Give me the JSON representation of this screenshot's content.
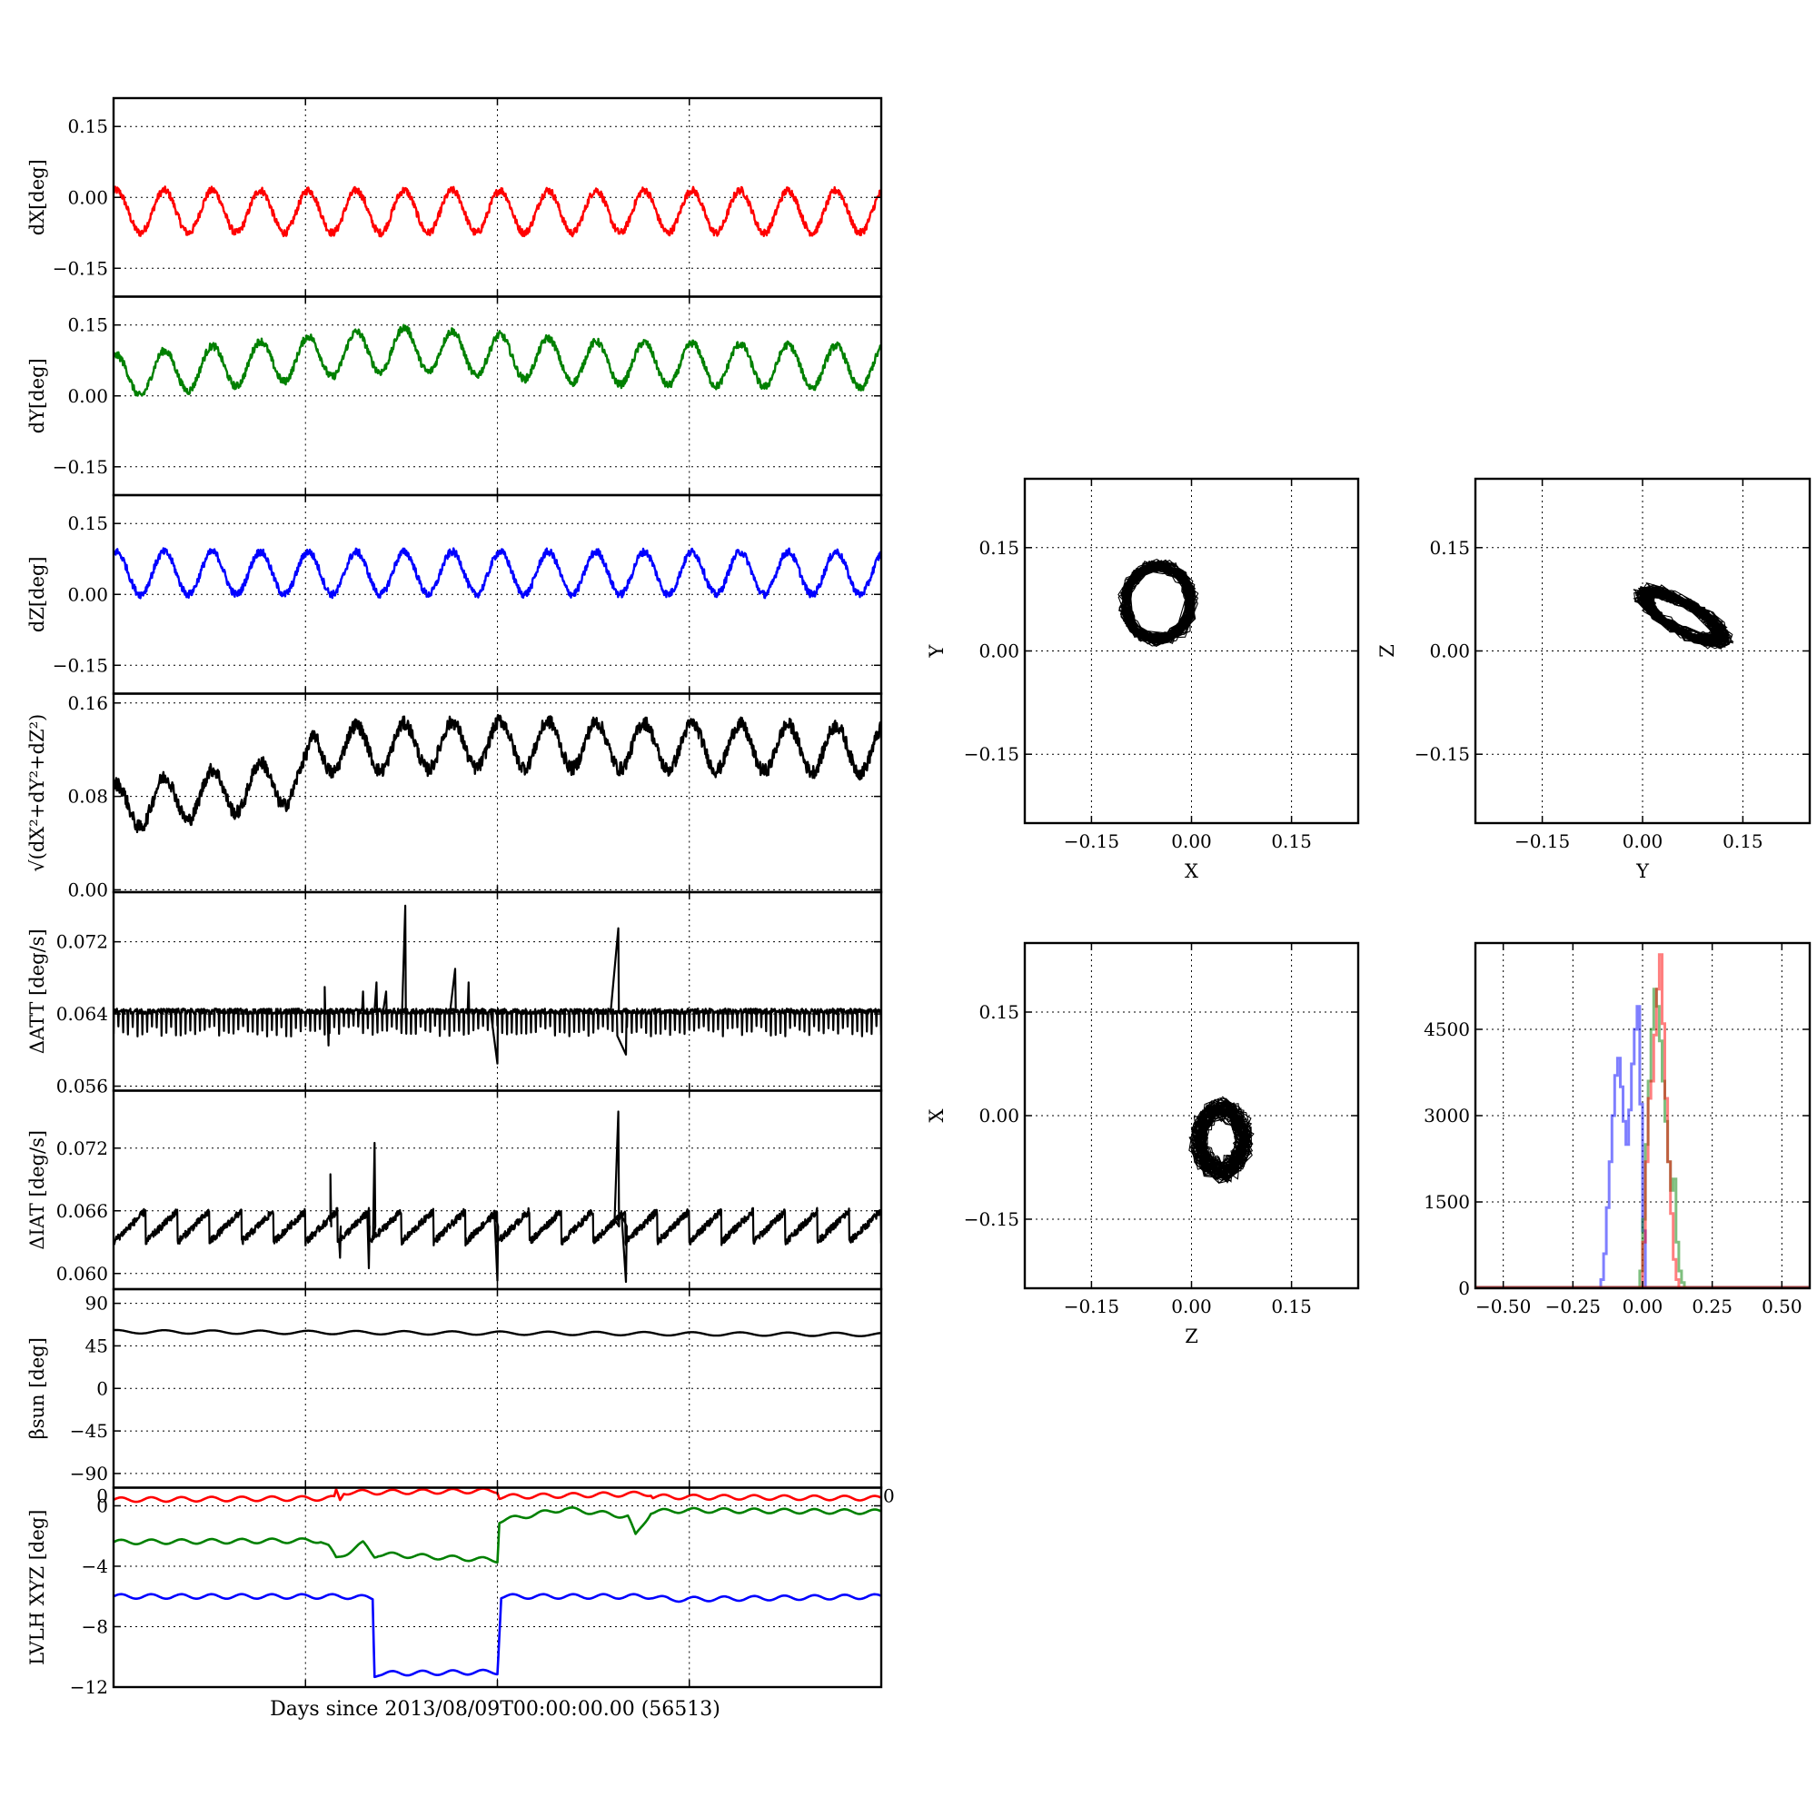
{
  "figure": {
    "xlabel_bottom": "Days since 2013/08/09T00:00:00.00 (56513)"
  },
  "chart_data": [
    {
      "id": "dx",
      "type": "line",
      "ylabel": "dX[deg]",
      "ylim": [
        -0.21,
        0.21
      ],
      "yticks": [
        0.15,
        0.0,
        -0.15
      ],
      "ytick_labels": [
        "0.15",
        "0.00",
        "−0.15"
      ],
      "xlim": [
        0,
        4
      ],
      "grid": true,
      "series": [
        {
          "color": "#ff0000",
          "shape": "sine",
          "x": [
            0,
            4
          ],
          "mean": -0.03,
          "amplitude": 0.045,
          "cycles": 16,
          "noise": 0.008
        }
      ]
    },
    {
      "id": "dy",
      "type": "line",
      "ylabel": "dY[deg]",
      "ylim": [
        -0.21,
        0.21
      ],
      "yticks": [
        0.15,
        0.0,
        -0.15
      ],
      "ytick_labels": [
        "0.15",
        "0.00",
        "−0.15"
      ],
      "xlim": [
        0,
        4
      ],
      "grid": true,
      "series": [
        {
          "color": "#008000",
          "shape": "sine",
          "x": [
            0,
            4
          ],
          "mean": 0.05,
          "amplitude": 0.045,
          "cycles": 16,
          "noise": 0.008,
          "mean_drift": [
            [
              0,
              0.04
            ],
            [
              1.5,
              0.1
            ],
            [
              2.5,
              0.07
            ],
            [
              4,
              0.06
            ]
          ]
        }
      ]
    },
    {
      "id": "dz",
      "type": "line",
      "ylabel": "dZ[deg]",
      "ylim": [
        -0.21,
        0.21
      ],
      "yticks": [
        0.15,
        0.0,
        -0.15
      ],
      "ytick_labels": [
        "0.15",
        "0.00",
        "−0.15"
      ],
      "xlim": [
        0,
        4
      ],
      "grid": true,
      "series": [
        {
          "color": "#0000ff",
          "shape": "sine",
          "x": [
            0,
            4
          ],
          "mean": 0.045,
          "amplitude": 0.045,
          "cycles": 16,
          "noise": 0.008
        }
      ]
    },
    {
      "id": "dr",
      "type": "line",
      "ylabel": "√(dX²+dY²+dZ²)",
      "ylim": [
        -0.002,
        0.168
      ],
      "yticks": [
        0.16,
        0.08,
        0.0
      ],
      "ytick_labels": [
        "0.16",
        "0.08",
        "0.00"
      ],
      "xlim": [
        0,
        4
      ],
      "grid": true,
      "series": [
        {
          "color": "#000000",
          "shape": "sine",
          "x": [
            0,
            4
          ],
          "mean": 0.115,
          "amplitude": 0.02,
          "cycles": 16,
          "noise": 0.006,
          "mean_drift": [
            [
              0,
              0.07
            ],
            [
              0.6,
              0.085
            ],
            [
              1.0,
              0.095
            ],
            [
              1.05,
              0.12
            ],
            [
              2.0,
              0.125
            ],
            [
              4,
              0.12
            ]
          ]
        }
      ]
    },
    {
      "id": "datt",
      "type": "line",
      "ylabel": "ΔATT [deg/s]",
      "ylim": [
        0.0555,
        0.0775
      ],
      "yticks": [
        0.072,
        0.064,
        0.056
      ],
      "ytick_labels": [
        "0.072",
        "0.064",
        "0.056"
      ],
      "xlim": [
        0,
        4
      ],
      "grid": true,
      "series": [
        {
          "color": "#000000",
          "shape": "comb",
          "x": [
            0,
            4
          ],
          "mean": 0.0643,
          "band": [
            0.0615,
            0.065
          ],
          "teeth": 160,
          "spikes": [
            [
              1.1,
              0.067
            ],
            [
              1.85,
              0.0675
            ],
            [
              1.3,
              0.0665
            ],
            [
              1.37,
              0.0675
            ],
            [
              1.42,
              0.0665
            ],
            [
              1.52,
              0.076
            ],
            [
              1.78,
              0.069
            ],
            [
              2.0,
              0.0585
            ],
            [
              2.63,
              0.0735
            ],
            [
              2.67,
              0.0595
            ],
            [
              1.12,
              0.0605
            ]
          ]
        }
      ]
    },
    {
      "id": "diat",
      "type": "line",
      "ylabel": "ΔIAT [deg/s]",
      "ylim": [
        0.0585,
        0.0775
      ],
      "yticks": [
        0.072,
        0.066,
        0.06
      ],
      "ytick_labels": [
        "0.072",
        "0.066",
        "0.060"
      ],
      "xlim": [
        0,
        4
      ],
      "grid": true,
      "series": [
        {
          "color": "#000000",
          "shape": "sawtooth",
          "x": [
            0,
            4
          ],
          "low": 0.063,
          "high": 0.066,
          "teeth": 24,
          "spikes": [
            [
              1.13,
              0.0695
            ],
            [
              1.18,
              0.0615
            ],
            [
              1.36,
              0.0725
            ],
            [
              1.33,
              0.0605
            ],
            [
              2.0,
              0.0593
            ],
            [
              2.63,
              0.0755
            ],
            [
              2.67,
              0.0592
            ]
          ]
        }
      ]
    },
    {
      "id": "beta",
      "type": "line",
      "ylabel": "βsun [deg]",
      "ylim": [
        -105,
        105
      ],
      "yticks": [
        90,
        45,
        0,
        -45,
        -90
      ],
      "ytick_labels": [
        "90",
        "45",
        "0",
        "−45",
        "−90"
      ],
      "xlim": [
        0,
        4
      ],
      "grid": true,
      "series": [
        {
          "color": "#000000",
          "shape": "sine",
          "x": [
            0,
            4
          ],
          "mean": 59,
          "amplitude": 1.8,
          "cycles": 16,
          "noise": 0.0,
          "mean_drift": [
            [
              0,
              60
            ],
            [
              4,
              57
            ]
          ]
        }
      ]
    },
    {
      "id": "lvlh",
      "type": "line",
      "ylabel": "LVLH XYZ [deg]",
      "ylim": [
        -12,
        1.2
      ],
      "yticks": [
        0,
        -4,
        -8,
        -12
      ],
      "ytick_labels": [
        "0",
        "−4",
        "−8",
        "−12"
      ],
      "extra_tick_labels": [
        "0",
        "0"
      ],
      "xlim": [
        0,
        4
      ],
      "grid": true,
      "series": [
        {
          "color": "#ff0000",
          "shape": "steps",
          "x": [
            0,
            1.15,
            1.16,
            1.18,
            1.2,
            1.35,
            2.0,
            2.01,
            2.8,
            2.81,
            4
          ],
          "y": [
            0.4,
            0.5,
            1.0,
            0.4,
            0.9,
            0.9,
            1.0,
            0.6,
            0.8,
            0.6,
            0.5
          ]
        },
        {
          "color": "#008000",
          "shape": "steps",
          "x": [
            0,
            1.08,
            1.12,
            1.16,
            1.3,
            1.36,
            1.38,
            2.0,
            2.01,
            2.35,
            2.68,
            2.72,
            2.8,
            2.98,
            4
          ],
          "y": [
            -2.4,
            -2.3,
            -2.7,
            -3.5,
            -2.5,
            -3.3,
            -3.2,
            -3.6,
            -1.0,
            -0.2,
            -0.7,
            -2.0,
            -0.4,
            -0.3,
            -0.4
          ]
        },
        {
          "color": "#0000ff",
          "shape": "steps",
          "x": [
            0,
            1.2,
            1.35,
            1.36,
            1.38,
            2.0,
            2.02,
            2.8,
            2.9,
            4
          ],
          "y": [
            -6.0,
            -6.0,
            -6.1,
            -11.2,
            -11.1,
            -11.0,
            -6.0,
            -6.0,
            -6.2,
            -6.0
          ]
        }
      ]
    },
    {
      "id": "scatter_xy",
      "type": "scatter",
      "xlabel": "X",
      "ylabel": "Y",
      "xlim": [
        -0.25,
        0.25
      ],
      "ylim": [
        -0.25,
        0.25
      ],
      "xticks": [
        -0.15,
        0.0,
        0.15
      ],
      "xtick_labels": [
        "−0.15",
        "0.00",
        "0.15"
      ],
      "yticks": [
        0.15,
        0.0,
        -0.15
      ],
      "ytick_labels": [
        "0.15",
        "0.00",
        "−0.15"
      ],
      "grid": true,
      "series": [
        {
          "color": "#000000",
          "center": [
            -0.05,
            0.07
          ],
          "radius": [
            0.055,
            0.06
          ],
          "ring": 0.2
        }
      ]
    },
    {
      "id": "scatter_yz",
      "type": "scatter",
      "xlabel": "Y",
      "ylabel": "Z",
      "xlim": [
        -0.25,
        0.25
      ],
      "ylim": [
        -0.25,
        0.25
      ],
      "xticks": [
        -0.15,
        0.0,
        0.15
      ],
      "xtick_labels": [
        "−0.15",
        "0.00",
        "0.15"
      ],
      "yticks": [
        0.15,
        0.0,
        -0.15
      ],
      "ytick_labels": [
        "0.15",
        "0.00",
        "−0.15"
      ],
      "grid": true,
      "series": [
        {
          "color": "#000000",
          "center": [
            0.06,
            0.05
          ],
          "radius": [
            0.08,
            0.025
          ],
          "tilt": -0.5,
          "ring": 0.4
        }
      ]
    },
    {
      "id": "scatter_zx",
      "type": "scatter",
      "xlabel": "Z",
      "ylabel": "X",
      "xlim": [
        -0.25,
        0.25
      ],
      "ylim": [
        -0.25,
        0.25
      ],
      "xticks": [
        -0.15,
        0.0,
        0.15
      ],
      "xtick_labels": [
        "−0.15",
        "0.00",
        "0.15"
      ],
      "yticks": [
        0.15,
        0.0,
        -0.15
      ],
      "ytick_labels": [
        "0.15",
        "0.00",
        "−0.15"
      ],
      "grid": true,
      "series": [
        {
          "color": "#000000",
          "center": [
            0.045,
            -0.035
          ],
          "radius": [
            0.045,
            0.06
          ],
          "ring": 0.5
        }
      ]
    },
    {
      "id": "histogram",
      "type": "histogram",
      "xlim": [
        -0.6,
        0.6
      ],
      "ylim": [
        0,
        6000
      ],
      "xticks": [
        -0.5,
        -0.25,
        0.0,
        0.25,
        0.5
      ],
      "xtick_labels": [
        "−0.50",
        "−0.25",
        "0.00",
        "0.25",
        "0.50"
      ],
      "yticks": [
        4500,
        3000,
        1500,
        0
      ],
      "ytick_labels": [
        "4500",
        "3000",
        "1500",
        "0"
      ],
      "grid": true,
      "series": [
        {
          "color": "#0000ff",
          "opacity": 0.5,
          "bin_width": 0.01,
          "x": [
            -0.16,
            -0.15,
            -0.14,
            -0.13,
            -0.12,
            -0.11,
            -0.1,
            -0.09,
            -0.08,
            -0.07,
            -0.06,
            -0.05,
            -0.04,
            -0.03,
            -0.02,
            -0.01,
            0.0,
            0.01
          ],
          "y": [
            0,
            150,
            600,
            1400,
            2200,
            3000,
            3700,
            4000,
            3500,
            2900,
            2500,
            3100,
            3900,
            4500,
            4900,
            3200,
            1000,
            0
          ]
        },
        {
          "color": "#008000",
          "opacity": 0.5,
          "bin_width": 0.01,
          "x": [
            -0.02,
            -0.01,
            0.0,
            0.01,
            0.02,
            0.03,
            0.04,
            0.05,
            0.06,
            0.07,
            0.08,
            0.09,
            0.1,
            0.11,
            0.12,
            0.13,
            0.14,
            0.15
          ],
          "y": [
            0,
            300,
            1200,
            2500,
            3600,
            4500,
            5200,
            4900,
            4300,
            3600,
            2900,
            2200,
            1700,
            1900,
            800,
            300,
            100,
            0
          ]
        },
        {
          "color": "#ff0000",
          "opacity": 0.5,
          "bin_width": 0.01,
          "x": [
            -0.01,
            0.0,
            0.01,
            0.02,
            0.03,
            0.04,
            0.05,
            0.06,
            0.07,
            0.08,
            0.09,
            0.1,
            0.11,
            0.12,
            0.13
          ],
          "y": [
            0,
            800,
            2200,
            3300,
            3600,
            4400,
            5200,
            5800,
            4600,
            3300,
            2200,
            1300,
            500,
            150,
            0
          ]
        }
      ]
    }
  ]
}
